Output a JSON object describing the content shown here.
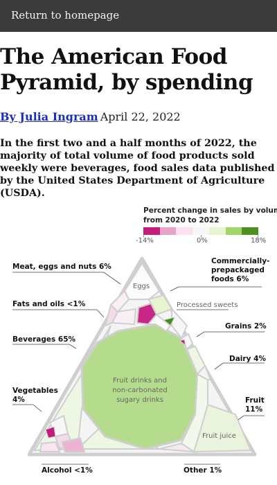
{
  "nav": {
    "return_label": "Return to homepage"
  },
  "article": {
    "headline": "The American Food Pyramid, by spending",
    "author": "By Julia Ingram",
    "date": "April 22, 2022",
    "lede": "In the first two and a half months of 2022, the majority of total volume of food products sold weekly were beverages, food sales data published by the United States Department of Agriculture (USDA)."
  },
  "legend": {
    "title_line1": "Percent change in sales by volume",
    "title_line2": "from 2020 to 2022",
    "min_label": "-14%",
    "mid_label": "0%",
    "max_label": "18%",
    "colors": [
      "#c51b7d",
      "#e9a3c9",
      "#fde0ef",
      "#f7f7f7",
      "#e6f5d0",
      "#a1d76a",
      "#4d9221"
    ]
  },
  "categories": {
    "meat": "Meat, eggs and nuts 6%",
    "fats": "Fats and oils <1%",
    "beverages": "Beverages 65%",
    "vegetables_1": "Vegetables",
    "vegetables_2": "4%",
    "alcohol": "Alcohol <1%",
    "commercial_1": "Commercially-",
    "commercial_2": "prepackaged",
    "commercial_3": "foods 6%",
    "grains": "Grains 2%",
    "dairy": "Dairy 4%",
    "fruit_1": "Fruit",
    "fruit_2": "11%",
    "other": "Other 1%"
  },
  "inner_labels": {
    "eggs": "Eggs",
    "processed_sweets": "Processed sweets",
    "fruit_drinks_1": "Fruit drinks and",
    "fruit_drinks_2": "non-carbonated",
    "fruit_drinks_3": "sugary drinks",
    "fruit_juice": "Fruit juice"
  }
}
